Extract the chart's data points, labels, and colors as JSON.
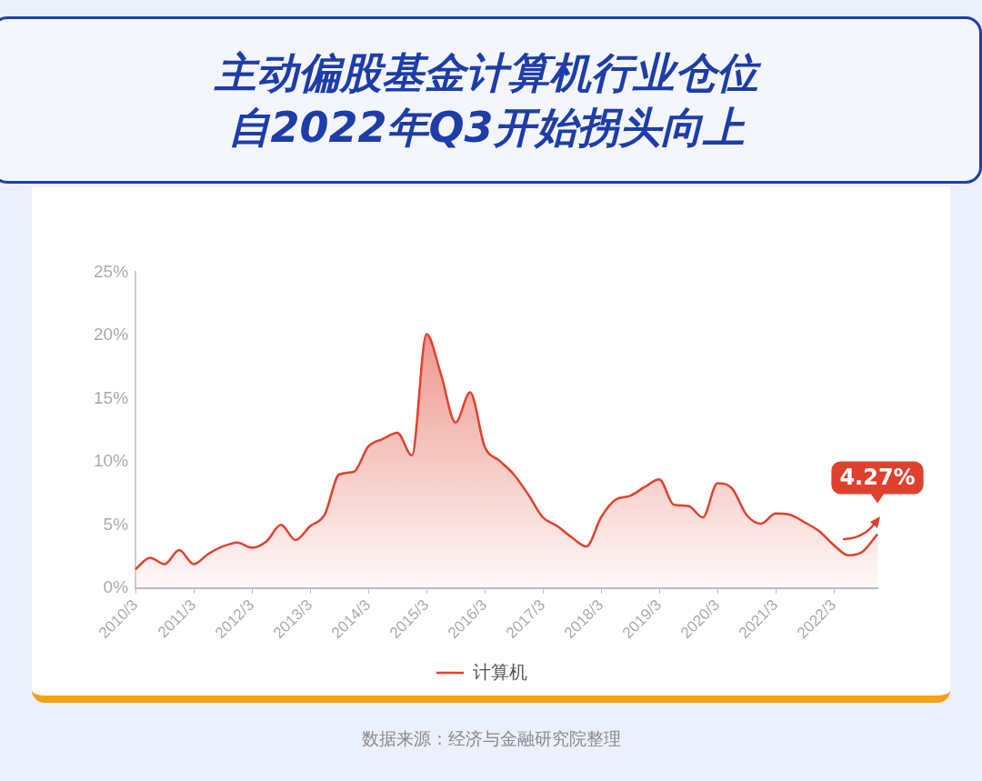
{
  "chart_data": {
    "type": "area",
    "title": "主动偏股基金计算机行业仓位自2022年Q3开始拐头向上",
    "categories": [
      "2010/3",
      null,
      null,
      null,
      "2011/3",
      null,
      null,
      null,
      "2012/3",
      null,
      null,
      null,
      "2013/3",
      null,
      null,
      null,
      "2014/3",
      null,
      null,
      null,
      "2015/3",
      null,
      null,
      null,
      "2016/3",
      null,
      null,
      null,
      "2017/3",
      null,
      null,
      null,
      "2018/3",
      null,
      null,
      null,
      "2019/3",
      null,
      null,
      null,
      "2020/3",
      null,
      null,
      null,
      "2021/3",
      null,
      null,
      null,
      "2022/3",
      null,
      null,
      null
    ],
    "series": [
      {
        "name": "计算机",
        "color": "#e0412f",
        "values": [
          1.5,
          2.4,
          1.9,
          3.0,
          1.9,
          2.7,
          3.3,
          3.6,
          3.2,
          3.7,
          5.0,
          3.8,
          4.9,
          5.8,
          9.0,
          9.2,
          11.2,
          11.8,
          12.3,
          10.5,
          20.1,
          16.9,
          13.1,
          15.5,
          11.2,
          10.1,
          9.0,
          7.4,
          5.6,
          4.9,
          4.0,
          3.3,
          5.6,
          7.0,
          7.3,
          8.0,
          8.6,
          6.6,
          6.5,
          5.6,
          8.3,
          7.9,
          5.8,
          5.1,
          5.9,
          5.8,
          5.2,
          4.5,
          3.4,
          2.6,
          2.9,
          4.27
        ],
        "value_labels": [
          null,
          null,
          null,
          null,
          null,
          null,
          null,
          null,
          null,
          null,
          null,
          null,
          null,
          null,
          null,
          null,
          null,
          null,
          null,
          null,
          null,
          null,
          null,
          null,
          null,
          null,
          null,
          null,
          null,
          null,
          null,
          null,
          null,
          null,
          null,
          null,
          null,
          null,
          null,
          null,
          null,
          null,
          null,
          null,
          null,
          null,
          null,
          null,
          null,
          null,
          null,
          "4.27%"
        ]
      }
    ],
    "ylim": [
      0,
      25
    ],
    "yticks": [
      {
        "value": 0,
        "label": "0%"
      },
      {
        "value": 5,
        "label": "5%"
      },
      {
        "value": 10,
        "label": "10%"
      },
      {
        "value": 15,
        "label": "15%"
      },
      {
        "value": 20,
        "label": "20%"
      },
      {
        "value": 25,
        "label": "25%"
      }
    ],
    "legend": "bottom",
    "marker": "none",
    "line_style": "solid",
    "annotations": [
      "数据来源：经济与金融研究院整理"
    ]
  }
}
